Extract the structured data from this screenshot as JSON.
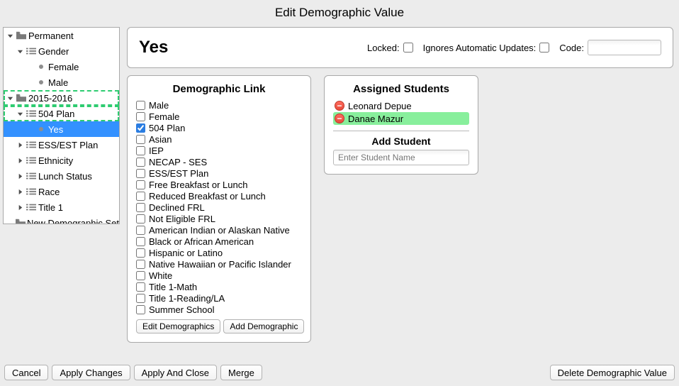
{
  "title": "Edit Demographic Value",
  "colors": {
    "background": "#ececec",
    "panel_border": "#a9a9a9",
    "selection": "#3391ff",
    "drag_outline": "#2ecc71",
    "highlight_row": "#88ef9c",
    "remove_btn": "#e74c3c"
  },
  "tree": [
    {
      "level": 0,
      "disclosure": "down",
      "icon": "folder",
      "label": "Permanent"
    },
    {
      "level": 1,
      "disclosure": "down",
      "icon": "list",
      "label": "Gender"
    },
    {
      "level": 2,
      "disclosure": "none",
      "icon": "bullet",
      "label": "Female"
    },
    {
      "level": 2,
      "disclosure": "none",
      "icon": "bullet",
      "label": "Male"
    },
    {
      "level": 0,
      "disclosure": "down",
      "icon": "folder",
      "label": "2015-2016",
      "drag": true
    },
    {
      "level": 1,
      "disclosure": "down",
      "icon": "list",
      "label": "504 Plan",
      "drag": true
    },
    {
      "level": 2,
      "disclosure": "none",
      "icon": "bullet",
      "label": "Yes",
      "selected": true
    },
    {
      "level": 1,
      "disclosure": "right",
      "icon": "list",
      "label": "ESS/EST Plan"
    },
    {
      "level": 1,
      "disclosure": "right",
      "icon": "list",
      "label": "Ethnicity"
    },
    {
      "level": 1,
      "disclosure": "right",
      "icon": "list",
      "label": "Lunch Status"
    },
    {
      "level": 1,
      "disclosure": "right",
      "icon": "list",
      "label": "Race"
    },
    {
      "level": 1,
      "disclosure": "right",
      "icon": "list",
      "label": "Title 1"
    },
    {
      "level": 0,
      "disclosure": "none",
      "icon": "folder",
      "label": "New Demographic Set"
    }
  ],
  "header": {
    "value": "Yes",
    "locked_label": "Locked:",
    "locked": false,
    "ignores_label": "Ignores Automatic Updates:",
    "ignores": false,
    "code_label": "Code:",
    "code": ""
  },
  "demographic_link": {
    "title": "Demographic Link",
    "items": [
      {
        "label": "Male",
        "checked": false
      },
      {
        "label": "Female",
        "checked": false
      },
      {
        "label": "504 Plan",
        "checked": true
      },
      {
        "label": "Asian",
        "checked": false
      },
      {
        "label": "IEP",
        "checked": false
      },
      {
        "label": "NECAP - SES",
        "checked": false
      },
      {
        "label": "ESS/EST Plan",
        "checked": false
      },
      {
        "label": "Free Breakfast or Lunch",
        "checked": false
      },
      {
        "label": "Reduced Breakfast or Lunch",
        "checked": false
      },
      {
        "label": "Declined FRL",
        "checked": false
      },
      {
        "label": "Not Eligible FRL",
        "checked": false
      },
      {
        "label": "American Indian or Alaskan Native",
        "checked": false
      },
      {
        "label": "Black or African American",
        "checked": false
      },
      {
        "label": "Hispanic or Latino",
        "checked": false
      },
      {
        "label": "Native Hawaiian or Pacific Islander",
        "checked": false
      },
      {
        "label": "White",
        "checked": false
      },
      {
        "label": "Title 1-Math",
        "checked": false
      },
      {
        "label": "Title 1-Reading/LA",
        "checked": false
      },
      {
        "label": "Summer School",
        "checked": false
      }
    ],
    "edit_btn": "Edit Demographics",
    "add_btn": "Add Demographic"
  },
  "assigned": {
    "title": "Assigned Students",
    "students": [
      {
        "name": "Leonard Depue",
        "highlight": false
      },
      {
        "name": "Danae Mazur",
        "highlight": true
      }
    ],
    "add_heading": "Add Student",
    "placeholder": "Enter Student Name"
  },
  "footer": {
    "cancel": "Cancel",
    "apply_changes": "Apply Changes",
    "apply_close": "Apply And Close",
    "merge": "Merge",
    "delete": "Delete Demographic Value"
  }
}
